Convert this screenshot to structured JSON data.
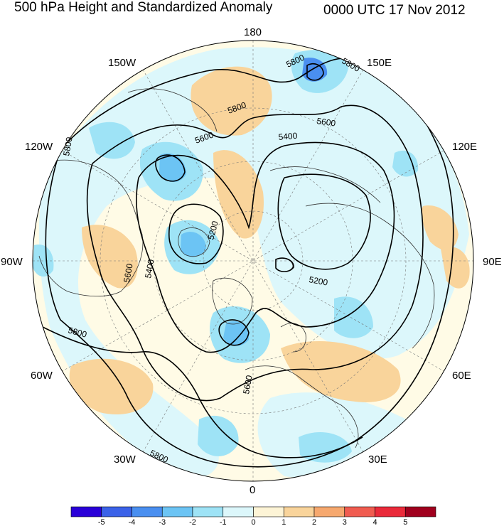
{
  "header": {
    "title": "500 hPa Height and Standardized Anomaly",
    "datetime": "0000 UTC 17 Nov 2012"
  },
  "map": {
    "projection": "polar-stereographic-north",
    "longitude_labels": [
      "180",
      "150E",
      "120E",
      "90E",
      "60E",
      "30E",
      "0",
      "30W",
      "60W",
      "90W",
      "120W",
      "150W"
    ],
    "contour_labels": [
      "5800",
      "5800",
      "5800",
      "5600",
      "5400",
      "5600",
      "5800",
      "5200",
      "5600",
      "5400",
      "5200",
      "5800",
      "5600",
      "5800"
    ],
    "colors": {
      "land_lines": "#333333",
      "contour": "#000000",
      "background": "#fffbe6"
    }
  },
  "colorbar": {
    "tick_labels": [
      "-5",
      "-4",
      "-3",
      "-2",
      "-1",
      "0",
      "1",
      "2",
      "3",
      "4",
      "5"
    ],
    "colors": [
      "#2a00d8",
      "#3b62e8",
      "#4a8ff0",
      "#6cc4f4",
      "#9ee3f6",
      "#dcf7fb",
      "#fdf4d6",
      "#f9d49b",
      "#f6a86e",
      "#f05c50",
      "#ea2a3a",
      "#a0001e"
    ]
  }
}
